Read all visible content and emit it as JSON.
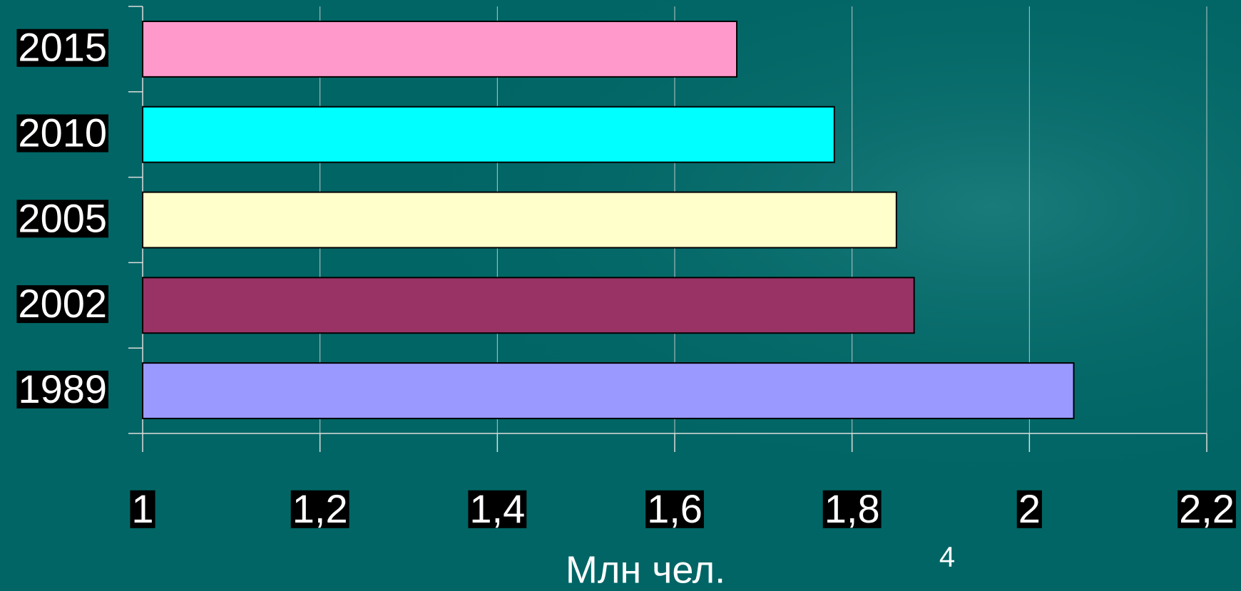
{
  "chart_data": {
    "type": "barh",
    "categories": [
      "2015",
      "2010",
      "2005",
      "2002",
      "1989"
    ],
    "values": [
      1.67,
      1.78,
      1.85,
      1.87,
      2.05
    ],
    "colors": [
      "#ff99cc",
      "#00ffff",
      "#ffffcc",
      "#993366",
      "#9999ff"
    ],
    "xlabel": "Млн чел.",
    "annotations": [
      "4"
    ],
    "xlim": [
      1,
      2.2
    ],
    "xticks": [
      1,
      {
        "value": 1.2,
        "label": "1,2"
      },
      {
        "value": 1.4,
        "label": "1,4"
      },
      {
        "value": 1.6,
        "label": "1,6"
      },
      {
        "value": 1.8,
        "label": "1,8"
      },
      2,
      {
        "value": 2.2,
        "label": "2,2"
      }
    ],
    "grid": true
  }
}
